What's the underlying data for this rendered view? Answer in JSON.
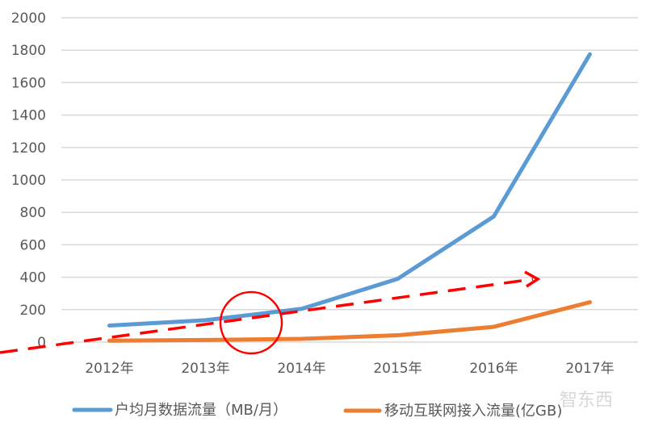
{
  "chart_data": {
    "type": "line",
    "title": "",
    "xlabel": "",
    "ylabel": "",
    "categories": [
      "2012年",
      "2013年",
      "2014年",
      "2015年",
      "2016年",
      "2017年"
    ],
    "yticks": [
      "0",
      "200",
      "400",
      "600",
      "800",
      "1000",
      "1200",
      "1400",
      "1600",
      "1800",
      "2000"
    ],
    "ylim": [
      0,
      2000
    ],
    "grid": true,
    "legend_position": "bottom",
    "series": [
      {
        "name": "户均月数据流量（MB/月）",
        "color": "#5B9BD5",
        "values": [
          102,
          135,
          205,
          390,
          775,
          1775
        ]
      },
      {
        "name": "移动互联网接入流量(亿GB)",
        "color": "#ED7D31",
        "values": [
          9,
          13,
          20,
          42,
          94,
          246
        ]
      }
    ],
    "annotations": [
      {
        "type": "dashed-arrow",
        "color": "#FF0000",
        "description": "rising trend arrow from left edge to ~2016.5"
      },
      {
        "type": "circle",
        "color": "#FF0000",
        "description": "highlight around 2013-2014 crossover"
      }
    ]
  },
  "legend": {
    "items": [
      {
        "label": "户均月数据流量（MB/月）",
        "color": "#5B9BD5"
      },
      {
        "label": "移动互联网接入流量(亿GB)",
        "color": "#ED7D31"
      }
    ]
  },
  "watermark": {
    "text": "智东西"
  }
}
